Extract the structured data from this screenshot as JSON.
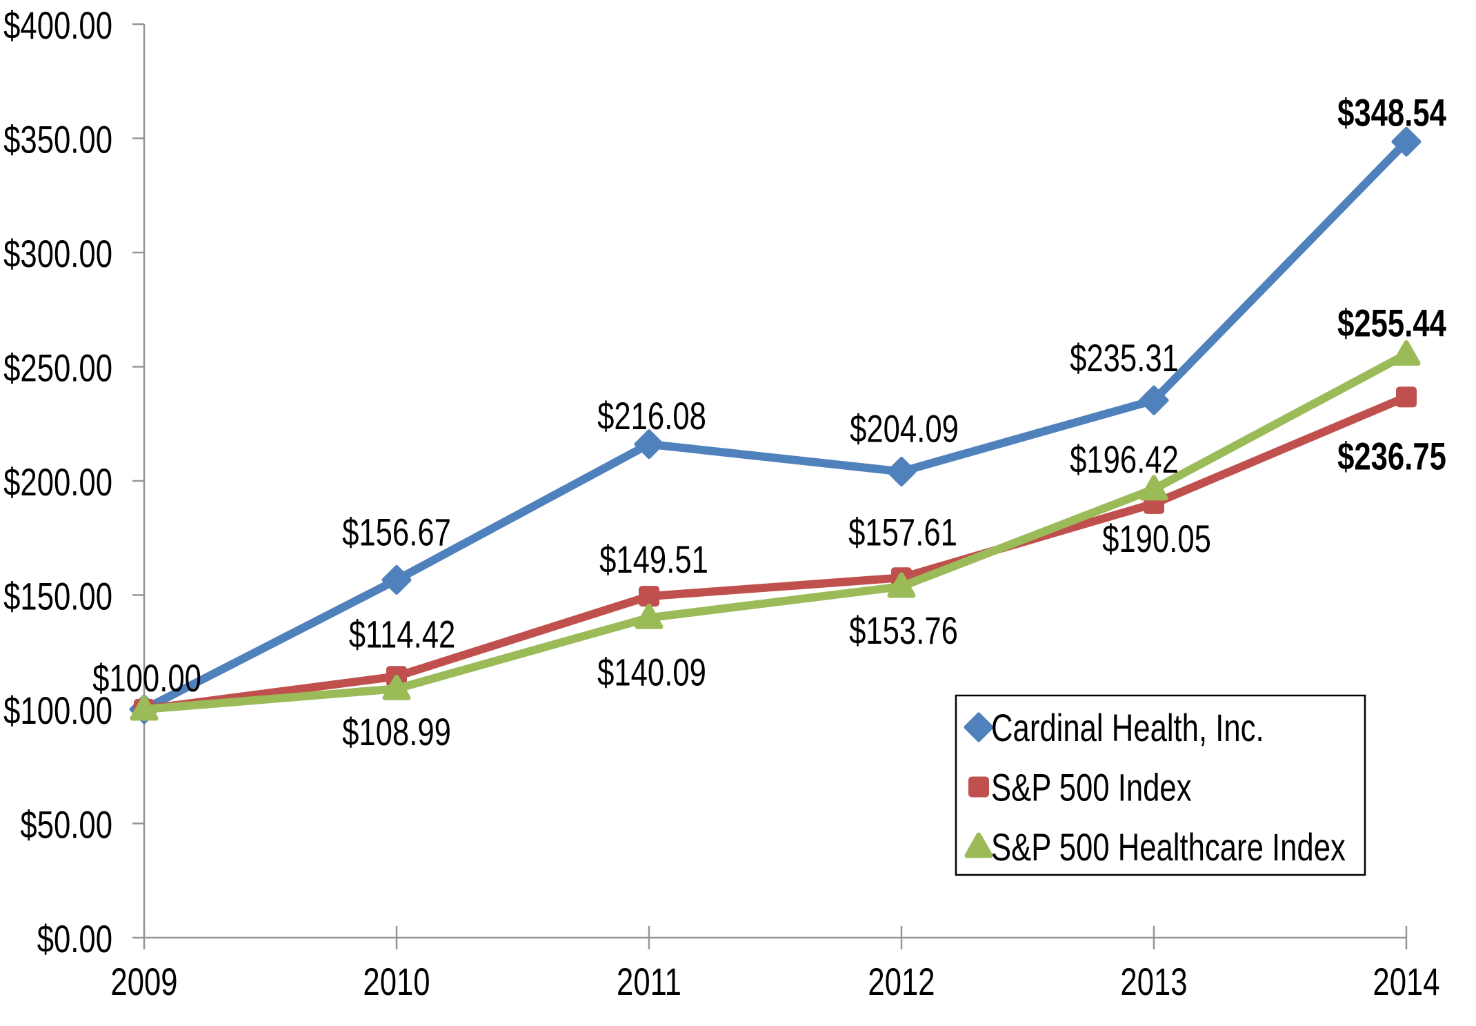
{
  "chart_data": {
    "type": "line",
    "title": "",
    "categories": [
      "2009",
      "2010",
      "2011",
      "2012",
      "2013",
      "2014"
    ],
    "series": [
      {
        "name": "Cardinal Health, Inc.",
        "color": "#4F81BD",
        "marker": "diamond",
        "values": [
          100.0,
          156.67,
          216.08,
          204.09,
          235.31,
          348.54
        ],
        "point_labels": [
          "$100.00",
          "$156.67",
          "$216.08",
          "$204.09",
          "$235.31",
          "$348.54"
        ]
      },
      {
        "name": "S&P 500 Index",
        "color": "#C0504D",
        "marker": "square",
        "values": [
          100.0,
          114.42,
          149.51,
          157.61,
          190.05,
          236.75
        ],
        "point_labels": [
          null,
          "$114.42",
          "$149.51",
          "$157.61",
          "$190.05",
          "$236.75"
        ]
      },
      {
        "name": "S&P 500 Healthcare Index",
        "color": "#9BBB59",
        "marker": "triangle",
        "values": [
          100.0,
          108.99,
          140.09,
          153.76,
          196.42,
          255.44
        ],
        "point_labels": [
          null,
          "$108.99",
          "$140.09",
          "$153.76",
          "$196.42",
          "$255.44"
        ]
      }
    ],
    "y_axis": {
      "min": 0,
      "max": 400,
      "step": 50,
      "tick_labels_bottom_up": [
        "$0.00",
        "$50.00",
        "$100.00",
        "$150.00",
        "$200.00",
        "$250.00",
        "$300.00",
        "$350.00",
        "$400.00"
      ]
    },
    "x_axis": {
      "tick_labels": [
        "2009",
        "2010",
        "2011",
        "2012",
        "2013",
        "2014"
      ]
    },
    "legend": {
      "position": "bottom-right",
      "entries": [
        "Cardinal Health, Inc.",
        "S&P 500 Index",
        "S&P 500 Healthcare Index"
      ]
    },
    "grid": false,
    "final_year_labels_bold": true,
    "colors": {
      "axis": "#969696",
      "text": "#000000",
      "legend_border": "#000000",
      "background": "#FFFFFF"
    }
  }
}
